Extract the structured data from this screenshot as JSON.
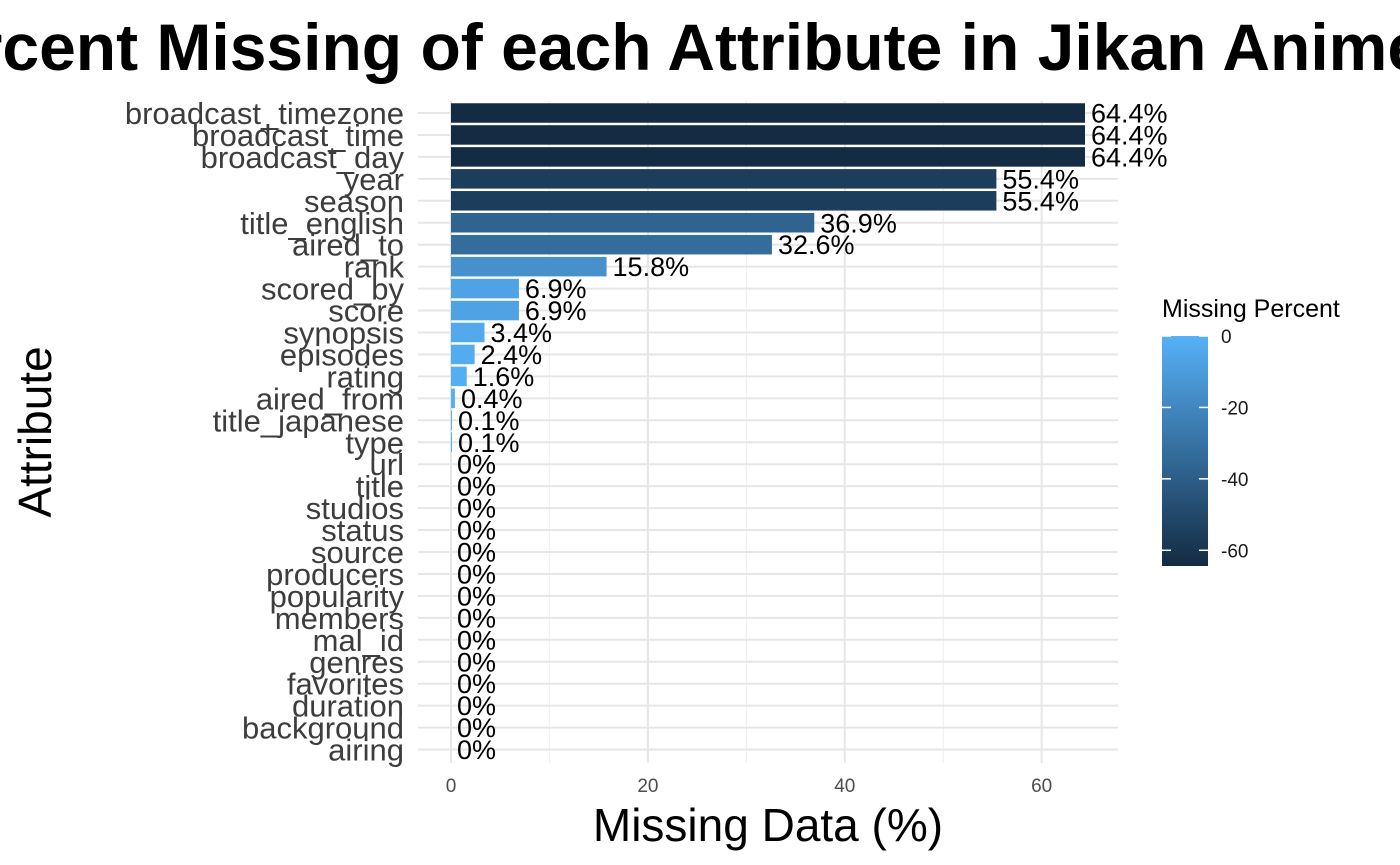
{
  "chart_data": {
    "type": "bar",
    "orientation": "horizontal",
    "title": "Percent Missing of each Attribute in Jikan Anime",
    "xlabel": "Missing Data (%)",
    "ylabel": "Attribute",
    "xlim": [
      0,
      67
    ],
    "x_ticks": [
      0,
      20,
      40,
      60
    ],
    "grid": true,
    "categories": [
      "broadcast_timezone",
      "broadcast_time",
      "broadcast_day",
      "year",
      "season",
      "title_english",
      "aired_to",
      "rank",
      "scored_by",
      "score",
      "synopsis",
      "episodes",
      "rating",
      "aired_from",
      "title_japanese",
      "type",
      "url",
      "title",
      "studios",
      "status",
      "source",
      "producers",
      "popularity",
      "members",
      "mal_id",
      "genres",
      "favorites",
      "duration",
      "background",
      "airing"
    ],
    "values": [
      64.4,
      64.4,
      64.4,
      55.4,
      55.4,
      36.9,
      32.6,
      15.8,
      6.9,
      6.9,
      3.4,
      2.4,
      1.6,
      0.4,
      0.1,
      0.1,
      0,
      0,
      0,
      0,
      0,
      0,
      0,
      0,
      0,
      0,
      0,
      0,
      0,
      0
    ],
    "labels": [
      "64.4%",
      "64.4%",
      "64.4%",
      "55.4%",
      "55.4%",
      "36.9%",
      "32.6%",
      "15.8%",
      "6.9%",
      "6.9%",
      "3.4%",
      "2.4%",
      "1.6%",
      "0.4%",
      "0.1%",
      "0.1%",
      "0%",
      "0%",
      "0%",
      "0%",
      "0%",
      "0%",
      "0%",
      "0%",
      "0%",
      "0%",
      "0%",
      "0%",
      "0%",
      "0%"
    ],
    "legend": {
      "title": "Missing Percent",
      "position": "right",
      "ticks": [
        0,
        -20,
        -40,
        -60
      ],
      "range": [
        -64.4,
        0
      ],
      "color_low": "#132B43",
      "color_high": "#56B1F7"
    }
  }
}
